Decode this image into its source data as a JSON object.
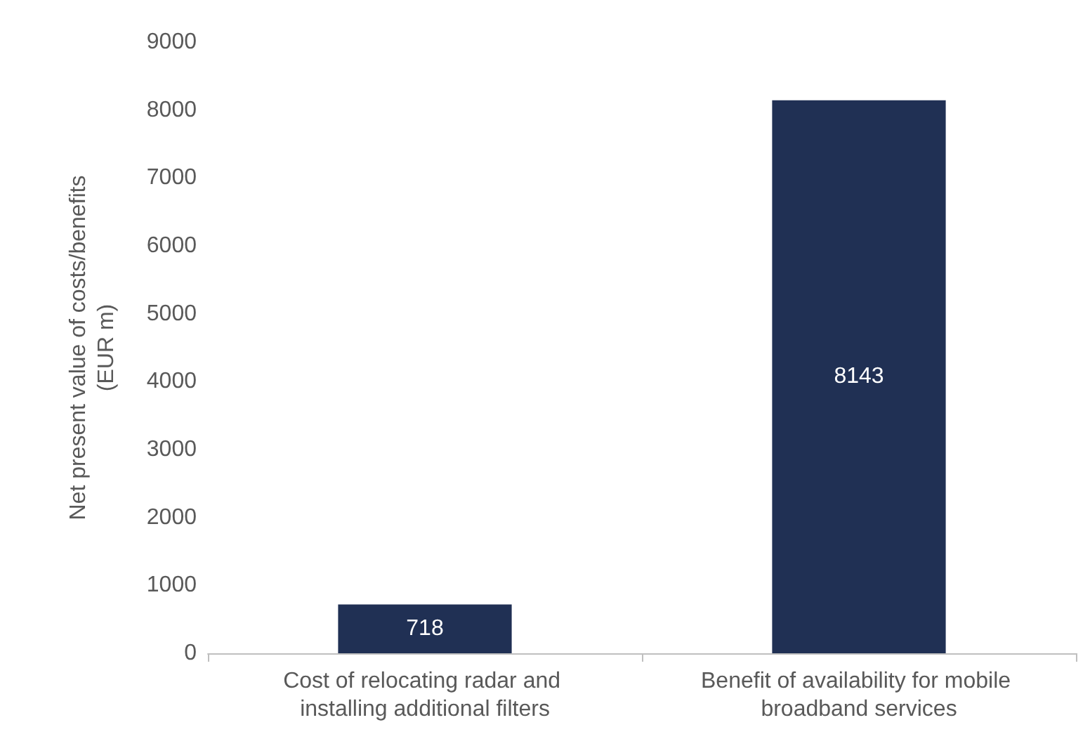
{
  "chart_data": {
    "type": "bar",
    "ylabel": "Net present value of costs/benefits\n(EUR m)",
    "categories": [
      "Cost of relocating radar and installing additional filters",
      "Benefit of availability for mobile broadband services"
    ],
    "values": [
      718,
      8143
    ],
    "color": "#203054",
    "ylim": [
      0,
      9000
    ],
    "yticks": [
      0,
      1000,
      2000,
      3000,
      4000,
      5000,
      6000,
      7000,
      8000,
      9000
    ],
    "data_labels": true
  }
}
